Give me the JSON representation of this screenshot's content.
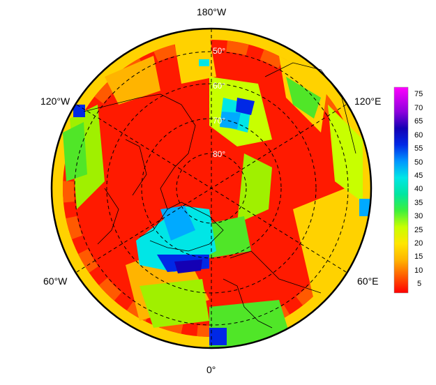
{
  "map": {
    "projection": "north-polar-stereographic",
    "longitude_labels": {
      "top": "180°W",
      "upper_left": "120°W",
      "upper_right": "120°E",
      "lower_left": "60°W",
      "lower_right": "60°E",
      "bottom": "0°"
    },
    "latitude_labels": [
      "50°",
      "60°",
      "70°",
      "80°"
    ],
    "colorbar": {
      "ticks": [
        "75",
        "70",
        "65",
        "60",
        "55",
        "50",
        "45",
        "40",
        "35",
        "30",
        "25",
        "20",
        "15",
        "10",
        "5"
      ],
      "colors": [
        "#ff0000",
        "#ff3c00",
        "#ff7a00",
        "#ffb400",
        "#ffe600",
        "#d2ff00",
        "#8cff00",
        "#28e628",
        "#00dc8c",
        "#00e6e6",
        "#00aaff",
        "#0050ff",
        "#0000cc",
        "#6400d2",
        "#b400e6",
        "#e600ff"
      ]
    }
  }
}
